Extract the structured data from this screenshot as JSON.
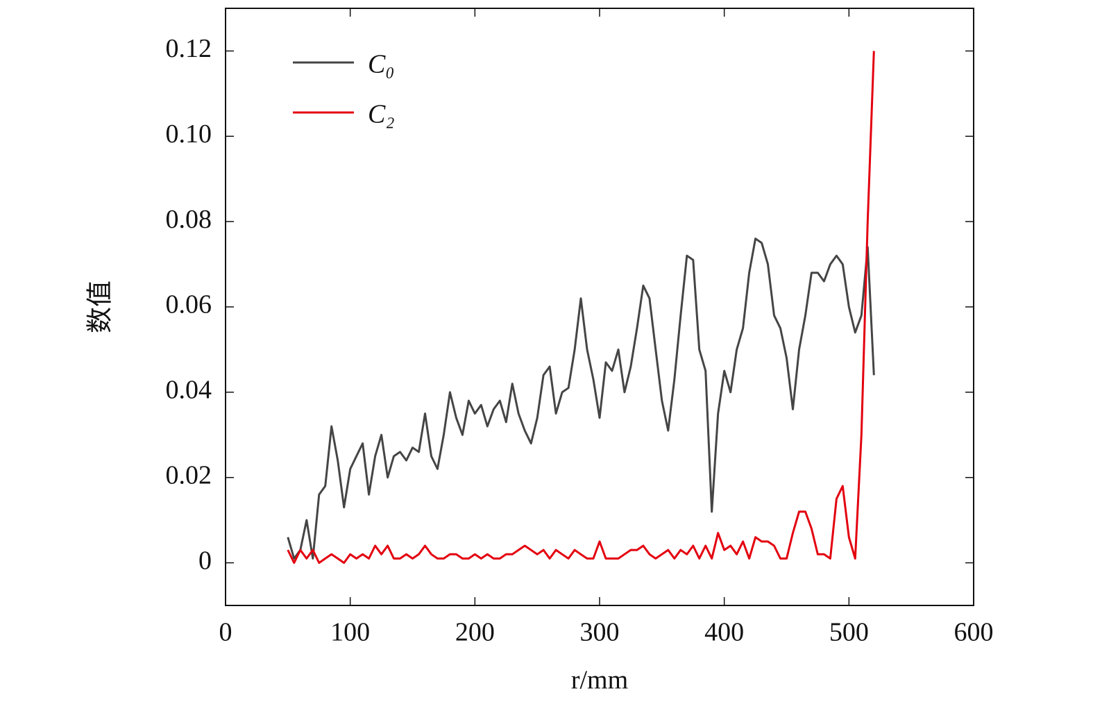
{
  "chart_data": {
    "type": "line",
    "x_label": "r/mm",
    "y_label": "数值",
    "x": [
      50,
      55,
      60,
      65,
      70,
      75,
      80,
      85,
      90,
      95,
      100,
      105,
      110,
      115,
      120,
      125,
      130,
      135,
      140,
      145,
      150,
      155,
      160,
      165,
      170,
      175,
      180,
      185,
      190,
      195,
      200,
      205,
      210,
      215,
      220,
      225,
      230,
      235,
      240,
      245,
      250,
      255,
      260,
      265,
      270,
      275,
      280,
      285,
      290,
      295,
      300,
      305,
      310,
      315,
      320,
      325,
      330,
      335,
      340,
      345,
      350,
      355,
      360,
      365,
      370,
      375,
      380,
      385,
      390,
      395,
      400,
      405,
      410,
      415,
      420,
      425,
      430,
      435,
      440,
      445,
      450,
      455,
      460,
      465,
      470,
      475,
      480,
      485,
      490,
      495,
      500,
      505,
      510,
      515,
      520
    ],
    "series": [
      {
        "name": "C₀",
        "color": "#454545",
        "values": [
          0.006,
          0.001,
          0.003,
          0.01,
          0.001,
          0.016,
          0.018,
          0.032,
          0.024,
          0.013,
          0.022,
          0.025,
          0.028,
          0.016,
          0.025,
          0.03,
          0.02,
          0.025,
          0.026,
          0.024,
          0.027,
          0.026,
          0.035,
          0.025,
          0.022,
          0.03,
          0.04,
          0.034,
          0.03,
          0.038,
          0.035,
          0.037,
          0.032,
          0.036,
          0.038,
          0.033,
          0.042,
          0.035,
          0.031,
          0.028,
          0.034,
          0.044,
          0.046,
          0.035,
          0.04,
          0.041,
          0.05,
          0.062,
          0.05,
          0.043,
          0.034,
          0.047,
          0.045,
          0.05,
          0.04,
          0.046,
          0.055,
          0.065,
          0.062,
          0.05,
          0.038,
          0.031,
          0.043,
          0.058,
          0.072,
          0.071,
          0.05,
          0.045,
          0.012,
          0.035,
          0.045,
          0.04,
          0.05,
          0.055,
          0.068,
          0.076,
          0.075,
          0.07,
          0.058,
          0.055,
          0.048,
          0.036,
          0.05,
          0.058,
          0.068,
          0.068,
          0.066,
          0.07,
          0.072,
          0.07,
          0.06,
          0.054,
          0.058,
          0.074,
          0.044
        ]
      },
      {
        "name": "C₂",
        "color": "#e3000f",
        "values": [
          0.003,
          0.0,
          0.003,
          0.001,
          0.003,
          0.0,
          0.001,
          0.002,
          0.001,
          0.0,
          0.002,
          0.001,
          0.002,
          0.001,
          0.004,
          0.002,
          0.004,
          0.001,
          0.001,
          0.002,
          0.001,
          0.002,
          0.004,
          0.002,
          0.001,
          0.001,
          0.002,
          0.002,
          0.001,
          0.001,
          0.002,
          0.001,
          0.002,
          0.001,
          0.001,
          0.002,
          0.002,
          0.003,
          0.004,
          0.003,
          0.002,
          0.003,
          0.001,
          0.003,
          0.002,
          0.001,
          0.003,
          0.002,
          0.001,
          0.001,
          0.005,
          0.001,
          0.001,
          0.001,
          0.002,
          0.003,
          0.003,
          0.004,
          0.002,
          0.001,
          0.002,
          0.003,
          0.001,
          0.003,
          0.002,
          0.004,
          0.001,
          0.004,
          0.001,
          0.007,
          0.003,
          0.004,
          0.002,
          0.005,
          0.001,
          0.006,
          0.005,
          0.005,
          0.004,
          0.001,
          0.001,
          0.007,
          0.012,
          0.012,
          0.008,
          0.002,
          0.002,
          0.001,
          0.015,
          0.018,
          0.006,
          0.001,
          0.03,
          0.08,
          0.12
        ]
      }
    ],
    "xlim": [
      0,
      600
    ],
    "xticks": [
      0,
      100,
      200,
      300,
      400,
      500,
      600
    ],
    "ylim": [
      -0.01,
      0.13
    ],
    "yticks": [
      0,
      0.02,
      0.04,
      0.06,
      0.08,
      {
        "value": 0.1,
        "label": "0.10"
      },
      0.12
    ],
    "legend": "upper left"
  }
}
